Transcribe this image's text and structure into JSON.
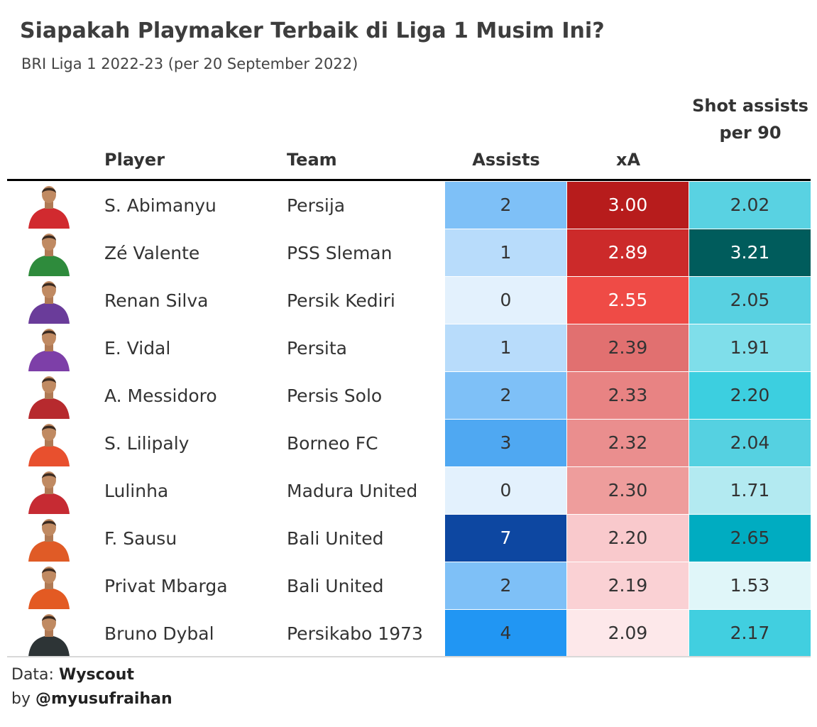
{
  "title": "Siapakah Playmaker Terbaik di Liga 1 Musim Ini?",
  "subtitle": "BRI Liga 1 2022-23 (per 20 September 2022)",
  "footer": {
    "data_prefix": "Data: ",
    "data_source": "Wyscout",
    "by_prefix": "by ",
    "author": "@myusufraihan"
  },
  "chart_data": {
    "type": "table",
    "columns": [
      "Player",
      "Team",
      "Assists",
      "xA",
      "Shot assists per 90"
    ],
    "rows": [
      {
        "player": "S. Abimanyu",
        "team": "Persija",
        "assists": 2,
        "xa": "3.00",
        "shot_assists_p90": "2.02",
        "assists_color": "#7ec0f7",
        "assists_text": "#333333",
        "xa_color": "#b71c1c",
        "xa_text": "#ffffff",
        "sa_color": "#59d2e2",
        "sa_text": "#333333",
        "jersey": "#d12a2f"
      },
      {
        "player": "Zé Valente",
        "team": "PSS Sleman",
        "assists": 1,
        "xa": "2.89",
        "shot_assists_p90": "3.21",
        "assists_color": "#b8dcfb",
        "assists_text": "#333333",
        "xa_color": "#cc2a2a",
        "xa_text": "#ffffff",
        "sa_color": "#005c5c",
        "sa_text": "#ffffff",
        "jersey": "#2e8b3c"
      },
      {
        "player": "Renan Silva",
        "team": "Persik Kediri",
        "assists": 0,
        "xa": "2.55",
        "shot_assists_p90": "2.05",
        "assists_color": "#e3f1fd",
        "assists_text": "#333333",
        "xa_color": "#ef4b46",
        "xa_text": "#ffffff",
        "sa_color": "#58d1e1",
        "sa_text": "#333333",
        "jersey": "#6a3c9a"
      },
      {
        "player": "E. Vidal",
        "team": "Persita",
        "assists": 1,
        "xa": "2.39",
        "shot_assists_p90": "1.91",
        "assists_color": "#b8dcfb",
        "assists_text": "#333333",
        "xa_color": "#e17070",
        "xa_text": "#333333",
        "sa_color": "#7fdeea",
        "sa_text": "#333333",
        "jersey": "#7d3fa8"
      },
      {
        "player": "A. Messidoro",
        "team": "Persis Solo",
        "assists": 2,
        "xa": "2.33",
        "shot_assists_p90": "2.20",
        "assists_color": "#7ec0f7",
        "assists_text": "#333333",
        "xa_color": "#e88383",
        "xa_text": "#333333",
        "sa_color": "#3ccfe0",
        "sa_text": "#333333",
        "jersey": "#b72a2e"
      },
      {
        "player": "S. Lilipaly",
        "team": "Borneo FC",
        "assists": 3,
        "xa": "2.32",
        "shot_assists_p90": "2.04",
        "assists_color": "#4fa8f2",
        "assists_text": "#333333",
        "xa_color": "#ea8e8e",
        "xa_text": "#333333",
        "sa_color": "#55d1e1",
        "sa_text": "#333333",
        "jersey": "#e8502e"
      },
      {
        "player": "Lulinha",
        "team": "Madura United",
        "assists": 0,
        "xa": "2.30",
        "shot_assists_p90": "1.71",
        "assists_color": "#e3f1fd",
        "assists_text": "#333333",
        "xa_color": "#ee9d9c",
        "xa_text": "#333333",
        "sa_color": "#b3eaf1",
        "sa_text": "#333333",
        "jersey": "#c62b33"
      },
      {
        "player": "F. Sausu",
        "team": "Bali United",
        "assists": 7,
        "xa": "2.20",
        "shot_assists_p90": "2.65",
        "assists_color": "#0d47a1",
        "assists_text": "#ffffff",
        "xa_color": "#f9c9cc",
        "xa_text": "#333333",
        "sa_color": "#00acc1",
        "sa_text": "#333333",
        "jersey": "#e05b26"
      },
      {
        "player": "Privat Mbarga",
        "team": "Bali United",
        "assists": 2,
        "xa": "2.19",
        "shot_assists_p90": "1.53",
        "assists_color": "#7ec0f7",
        "assists_text": "#333333",
        "xa_color": "#fad1d4",
        "xa_text": "#333333",
        "sa_color": "#e0f6f9",
        "sa_text": "#333333",
        "jersey": "#e35a23"
      },
      {
        "player": "Bruno Dybal",
        "team": "Persikabo 1973",
        "assists": 4,
        "xa": "2.09",
        "shot_assists_p90": "2.17",
        "assists_color": "#2196f3",
        "assists_text": "#333333",
        "xa_color": "#fde8ea",
        "xa_text": "#333333",
        "sa_color": "#41cfe0",
        "sa_text": "#333333",
        "jersey": "#2d3436"
      }
    ]
  }
}
